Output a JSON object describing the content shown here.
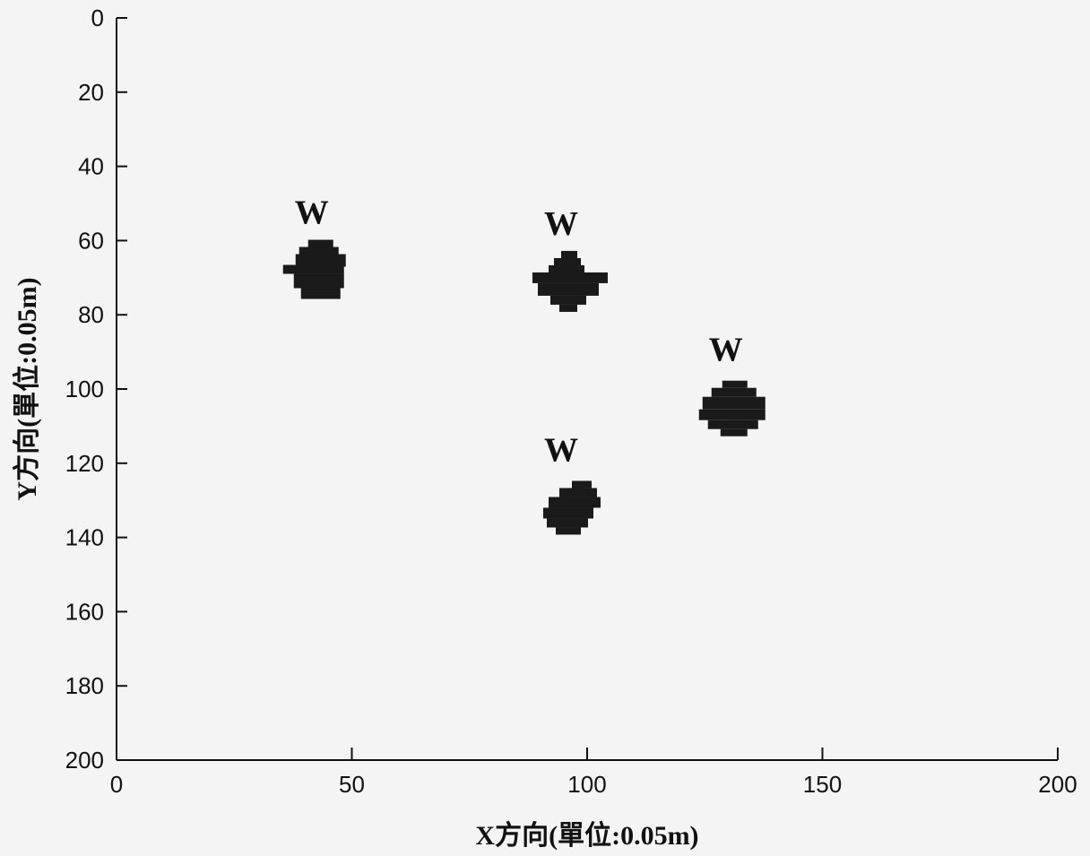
{
  "chart_data": {
    "type": "scatter",
    "xlabel": "X方向(單位:0.05m)",
    "ylabel": "Y方向(單位:0.05m)",
    "xlim": [
      0,
      200
    ],
    "ylim": [
      0,
      200
    ],
    "y_axis_inverted": true,
    "x_ticks": [
      0,
      50,
      100,
      150,
      200
    ],
    "y_ticks": [
      0,
      20,
      40,
      60,
      80,
      100,
      120,
      140,
      160,
      180,
      200
    ],
    "grid": false,
    "marker_color": "#1a1a1a",
    "points": [
      {
        "x": 43,
        "y": 68,
        "label": "W"
      },
      {
        "x": 96,
        "y": 71,
        "label": "W"
      },
      {
        "x": 131,
        "y": 105,
        "label": "W"
      },
      {
        "x": 96,
        "y": 132,
        "label": "W"
      }
    ]
  }
}
